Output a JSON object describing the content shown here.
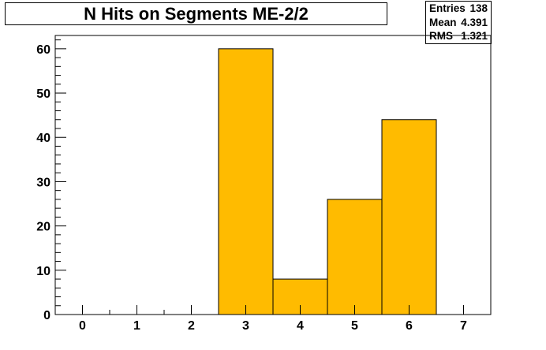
{
  "title": "N Hits on Segments ME-2/2",
  "stats": {
    "entries_label": "Entries",
    "entries_value": "138",
    "mean_label": "Mean",
    "mean_value": "4.391",
    "rms_label": "RMS",
    "rms_value": "1.321"
  },
  "colors": {
    "bar_fill": "#FFBB00",
    "axis": "#000000"
  },
  "chart_data": {
    "type": "bar",
    "title": "N Hits on Segments ME-2/2",
    "xlabel": "",
    "ylabel": "",
    "xlim": [
      -0.5,
      7.5
    ],
    "ylim": [
      0,
      63
    ],
    "x_ticks": [
      0,
      1,
      2,
      3,
      4,
      5,
      6,
      7
    ],
    "y_ticks": [
      0,
      10,
      20,
      30,
      40,
      50,
      60
    ],
    "categories": [
      0,
      1,
      2,
      3,
      4,
      5,
      6,
      7
    ],
    "values": [
      0,
      0,
      0,
      60,
      8,
      26,
      44,
      0
    ],
    "grid": false
  }
}
